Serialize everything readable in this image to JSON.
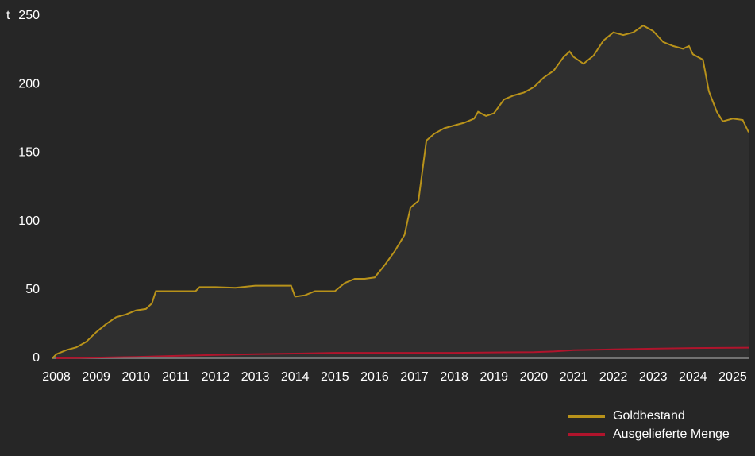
{
  "chart_data": {
    "type": "line",
    "y_unit": "t",
    "xlim": [
      2007.9,
      2025.4
    ],
    "xticks": [
      2008,
      2009,
      2010,
      2011,
      2012,
      2013,
      2014,
      2015,
      2016,
      2017,
      2018,
      2019,
      2020,
      2021,
      2022,
      2023,
      2024,
      2025
    ],
    "ylim": [
      0,
      250
    ],
    "yticks": [
      0,
      50,
      100,
      150,
      200,
      250
    ],
    "grid": false,
    "legend": "bottom-right",
    "series": [
      {
        "name": "Goldbestand",
        "color": "#b8921a",
        "x": [
          2007.9,
          2008.0,
          2008.25,
          2008.5,
          2008.75,
          2009.0,
          2009.25,
          2009.5,
          2009.75,
          2010.0,
          2010.25,
          2010.4,
          2010.5,
          2010.75,
          2011.0,
          2011.5,
          2011.6,
          2012.0,
          2012.5,
          2013.0,
          2013.5,
          2013.9,
          2014.0,
          2014.25,
          2014.5,
          2014.75,
          2015.0,
          2015.25,
          2015.5,
          2015.75,
          2016.0,
          2016.25,
          2016.5,
          2016.75,
          2016.9,
          2017.1,
          2017.3,
          2017.5,
          2017.75,
          2018.0,
          2018.25,
          2018.5,
          2018.6,
          2018.8,
          2019.0,
          2019.25,
          2019.5,
          2019.75,
          2020.0,
          2020.25,
          2020.5,
          2020.75,
          2020.9,
          2021.0,
          2021.25,
          2021.5,
          2021.75,
          2022.0,
          2022.25,
          2022.5,
          2022.75,
          2023.0,
          2023.25,
          2023.5,
          2023.75,
          2023.9,
          2024.0,
          2024.25,
          2024.4,
          2024.6,
          2024.75,
          2025.0,
          2025.25,
          2025.4
        ],
        "values": [
          0,
          3,
          6,
          8,
          12,
          19,
          25,
          30,
          32,
          35,
          36,
          40,
          49,
          49,
          49,
          49,
          52,
          52,
          51.5,
          53,
          53,
          53,
          45,
          46,
          49,
          49,
          49,
          55,
          58,
          58,
          59,
          68,
          78,
          90,
          110,
          115,
          159,
          164,
          168,
          170,
          172,
          175,
          180,
          177,
          179,
          189,
          192,
          194,
          198,
          205,
          210,
          220,
          224,
          220,
          215,
          221,
          232,
          238,
          236,
          238,
          243,
          239,
          231,
          228,
          226,
          228,
          222,
          218,
          195,
          180,
          173,
          175,
          174,
          165
        ]
      },
      {
        "name": "Ausgelieferte Menge",
        "color": "#b0142c",
        "x": [
          2008.0,
          2009.0,
          2010.0,
          2011.0,
          2012.0,
          2013.0,
          2014.0,
          2015.0,
          2016.0,
          2017.0,
          2018.0,
          2019.0,
          2020.0,
          2020.5,
          2021.0,
          2022.0,
          2023.0,
          2024.0,
          2025.4
        ],
        "values": [
          0,
          0.5,
          1,
          1.8,
          2.5,
          3,
          3.5,
          4,
          4,
          4,
          4,
          4.3,
          4.5,
          5,
          6,
          6.5,
          7,
          7.5,
          7.8
        ]
      }
    ]
  }
}
